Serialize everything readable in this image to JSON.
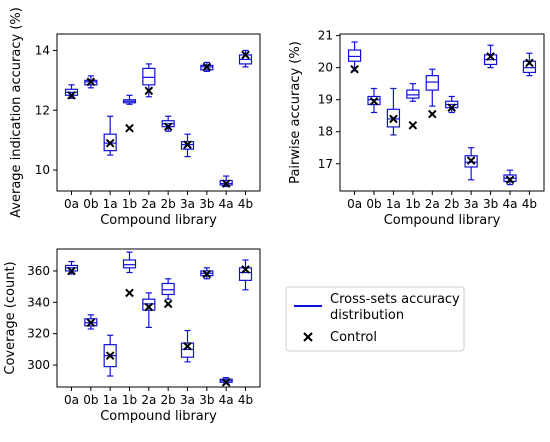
{
  "box_color": "#1010dd",
  "control_color": "#000000",
  "legend": {
    "placement": "lower-right",
    "box_label_line1": "Cross-sets accuracy",
    "box_label_line2": "distribution",
    "control_label": "Control"
  },
  "chart_data": [
    {
      "type": "box",
      "xlabel": "Compound library",
      "ylabel": "Average indication accuracy (%)",
      "ylim": [
        9.3,
        14.55
      ],
      "yticks": [
        10,
        12,
        14
      ],
      "grid": false,
      "categories": [
        "0a",
        "0b",
        "1a",
        "1b",
        "2a",
        "2b",
        "3a",
        "3b",
        "4a",
        "4b"
      ],
      "boxes": [
        {
          "whislo": 12.4,
          "q1": 12.5,
          "med": 12.6,
          "q3": 12.7,
          "whishi": 12.85
        },
        {
          "whislo": 12.75,
          "q1": 12.85,
          "med": 12.95,
          "q3": 13.0,
          "whishi": 13.15
        },
        {
          "whislo": 10.5,
          "q1": 10.65,
          "med": 10.9,
          "q3": 11.2,
          "whishi": 11.8
        },
        {
          "whislo": 12.2,
          "q1": 12.25,
          "med": 12.3,
          "q3": 12.35,
          "whishi": 12.5
        },
        {
          "whislo": 12.45,
          "q1": 12.85,
          "med": 13.1,
          "q3": 13.4,
          "whishi": 13.55
        },
        {
          "whislo": 11.3,
          "q1": 11.45,
          "med": 11.55,
          "q3": 11.65,
          "whishi": 11.8
        },
        {
          "whislo": 10.45,
          "q1": 10.7,
          "med": 10.85,
          "q3": 10.95,
          "whishi": 11.2
        },
        {
          "whislo": 13.3,
          "q1": 13.35,
          "med": 13.45,
          "q3": 13.5,
          "whishi": 13.6
        },
        {
          "whislo": 9.45,
          "q1": 9.5,
          "med": 9.55,
          "q3": 9.65,
          "whishi": 9.8
        },
        {
          "whislo": 13.45,
          "q1": 13.55,
          "med": 13.7,
          "q3": 13.85,
          "whishi": 14.0
        }
      ],
      "control": [
        12.5,
        12.95,
        10.9,
        11.4,
        12.65,
        11.45,
        10.85,
        13.45,
        9.55,
        13.85
      ]
    },
    {
      "type": "box",
      "xlabel": "Compound library",
      "ylabel": "Pairwise accuracy (%)",
      "ylim": [
        16.15,
        21.05
      ],
      "yticks": [
        17,
        18,
        19,
        20,
        21
      ],
      "grid": false,
      "categories": [
        "0a",
        "0b",
        "1a",
        "1b",
        "2a",
        "2b",
        "3a",
        "3b",
        "4a",
        "4b"
      ],
      "boxes": [
        {
          "whislo": 19.9,
          "q1": 20.2,
          "med": 20.35,
          "q3": 20.55,
          "whishi": 20.8
        },
        {
          "whislo": 18.6,
          "q1": 18.85,
          "med": 19.0,
          "q3": 19.1,
          "whishi": 19.35
        },
        {
          "whislo": 17.9,
          "q1": 18.15,
          "med": 18.4,
          "q3": 18.7,
          "whishi": 19.35
        },
        {
          "whislo": 18.95,
          "q1": 19.05,
          "med": 19.15,
          "q3": 19.3,
          "whishi": 19.5
        },
        {
          "whislo": 18.8,
          "q1": 19.3,
          "med": 19.55,
          "q3": 19.75,
          "whishi": 19.95
        },
        {
          "whislo": 18.6,
          "q1": 18.75,
          "med": 18.85,
          "q3": 18.95,
          "whishi": 19.1
        },
        {
          "whislo": 16.5,
          "q1": 16.9,
          "med": 17.05,
          "q3": 17.25,
          "whishi": 17.5
        },
        {
          "whislo": 20.0,
          "q1": 20.1,
          "med": 20.25,
          "q3": 20.4,
          "whishi": 20.7
        },
        {
          "whislo": 16.35,
          "q1": 16.45,
          "med": 16.55,
          "q3": 16.65,
          "whishi": 16.8
        },
        {
          "whislo": 19.75,
          "q1": 19.85,
          "med": 20.0,
          "q3": 20.2,
          "whishi": 20.45
        }
      ],
      "control": [
        19.95,
        18.95,
        18.4,
        18.2,
        18.55,
        18.75,
        17.1,
        20.35,
        16.5,
        20.15
      ]
    },
    {
      "type": "box",
      "xlabel": "Compound library",
      "ylabel": "Coverage (count)",
      "ylim": [
        286,
        374
      ],
      "yticks": [
        300,
        320,
        340,
        360
      ],
      "grid": false,
      "categories": [
        "0a",
        "0b",
        "1a",
        "1b",
        "2a",
        "2b",
        "3a",
        "3b",
        "4a",
        "4b"
      ],
      "boxes": [
        {
          "whislo": 358,
          "q1": 360,
          "med": 362,
          "q3": 363.5,
          "whishi": 366
        },
        {
          "whislo": 323,
          "q1": 325,
          "med": 327,
          "q3": 329.5,
          "whishi": 332
        },
        {
          "whislo": 293,
          "q1": 299,
          "med": 306,
          "q3": 313,
          "whishi": 319
        },
        {
          "whislo": 359,
          "q1": 362,
          "med": 364,
          "q3": 367,
          "whishi": 372
        },
        {
          "whislo": 324,
          "q1": 335,
          "med": 339,
          "q3": 342,
          "whishi": 346
        },
        {
          "whislo": 342,
          "q1": 345,
          "med": 348,
          "q3": 352,
          "whishi": 355
        },
        {
          "whislo": 302,
          "q1": 305,
          "med": 310,
          "q3": 314,
          "whishi": 322
        },
        {
          "whislo": 355,
          "q1": 357,
          "med": 358.5,
          "q3": 360,
          "whishi": 362
        },
        {
          "whislo": 288,
          "q1": 289,
          "med": 290,
          "q3": 291,
          "whishi": 292
        },
        {
          "whislo": 348,
          "q1": 354,
          "med": 359,
          "q3": 362,
          "whishi": 367
        }
      ],
      "control": [
        360,
        327,
        306,
        346,
        337,
        339,
        312,
        358,
        289,
        361
      ]
    }
  ]
}
